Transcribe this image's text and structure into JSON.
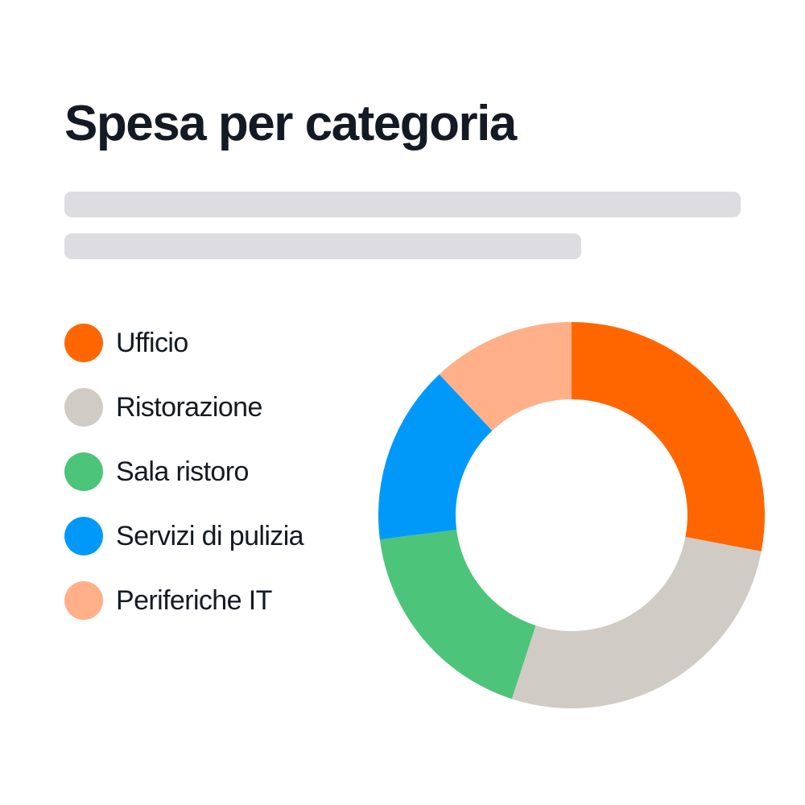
{
  "chart_data": {
    "type": "pie",
    "variant": "donut",
    "title": "Spesa per categoria",
    "legend_position": "left",
    "series": [
      {
        "name": "Ufficio",
        "value": 28,
        "color": "#ff6600"
      },
      {
        "name": "Ristorazione",
        "value": 27,
        "color": "#d1cbc5"
      },
      {
        "name": "Sala ristoro",
        "value": 18,
        "color": "#4cc47a"
      },
      {
        "name": "Servizi di pulizia",
        "value": 15,
        "color": "#0099f9"
      },
      {
        "name": "Periferiche IT",
        "value": 12,
        "color": "#ffb088"
      }
    ]
  }
}
